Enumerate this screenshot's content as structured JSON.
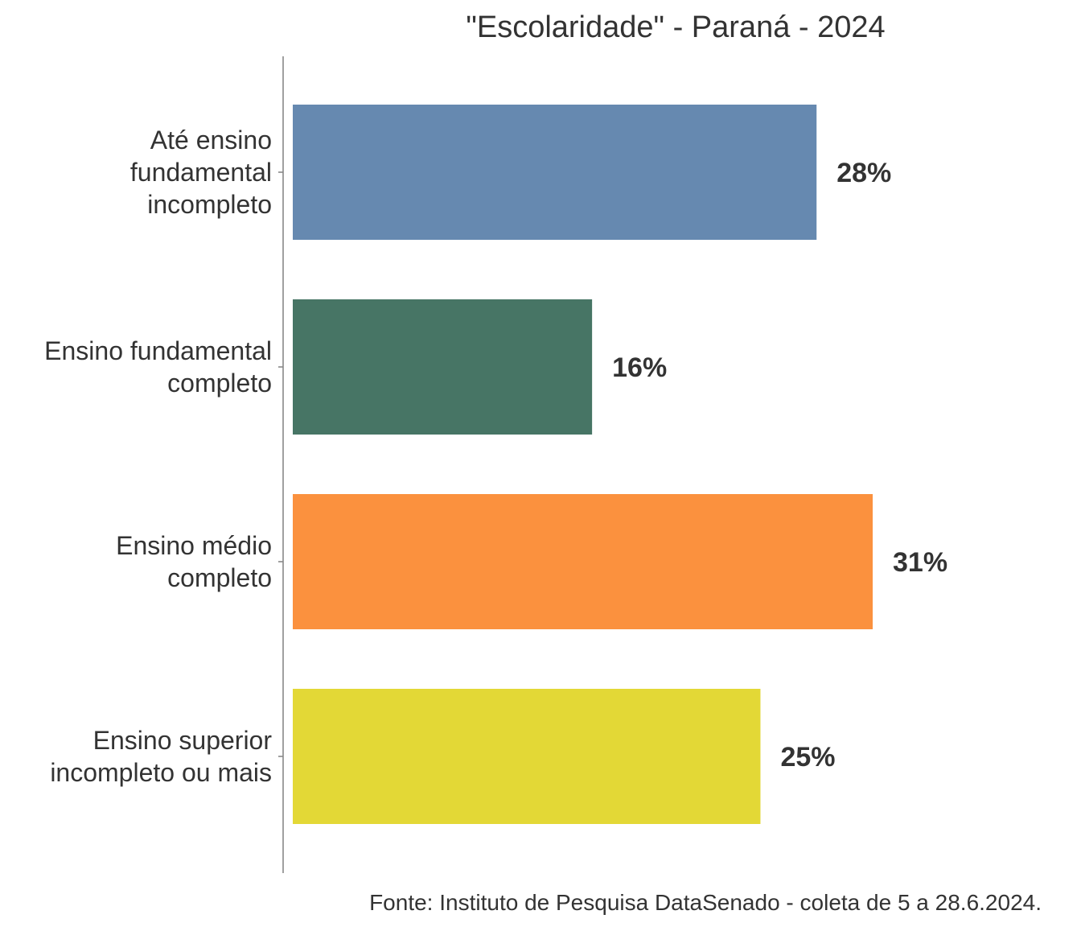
{
  "chart_data": {
    "type": "bar",
    "orientation": "horizontal",
    "title": "\"Escolaridade\" - Paraná - 2024",
    "categories": [
      [
        "Até ensino",
        "fundamental",
        "incompleto"
      ],
      [
        "Ensino fundamental",
        "completo"
      ],
      [
        "Ensino médio",
        "completo"
      ],
      [
        "Ensino superior",
        "incompleto ou mais"
      ]
    ],
    "values": [
      28,
      16,
      31,
      25
    ],
    "value_labels": [
      "28%",
      "16%",
      "31%",
      "25%"
    ],
    "colors": [
      "#6689b0",
      "#477565",
      "#fb913e",
      "#e3d836"
    ],
    "xlim": [
      0,
      31
    ],
    "grid": false,
    "legend": "none",
    "caption": "Fonte: Instituto de Pesquisa DataSenado - coleta de 5 a 28.6.2024."
  }
}
